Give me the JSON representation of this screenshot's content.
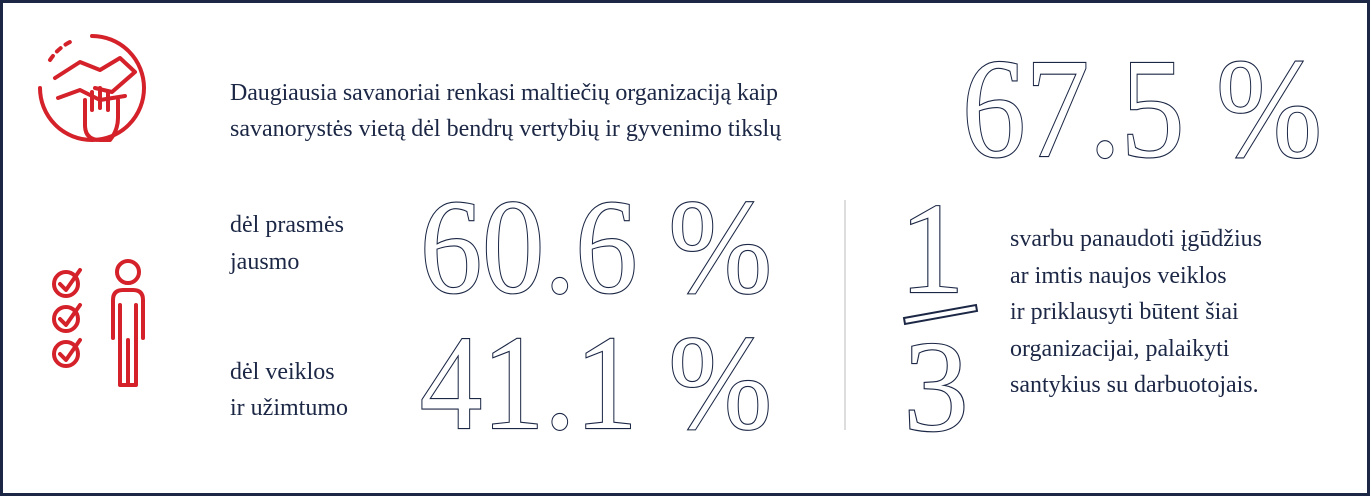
{
  "header": {
    "text_lines": [
      "Daugiausia savanoriai renkasi maltiečių organizaciją kaip",
      "savanorystės vietą dėl bendrų vertybių ir gyvenimo tikslų"
    ],
    "stat": "67.5 %"
  },
  "stats": [
    {
      "label_lines": [
        "dėl prasmės",
        "jausmo"
      ],
      "value": "60.6 %"
    },
    {
      "label_lines": [
        "dėl veiklos",
        "ir užimtumo"
      ],
      "value": "41.1 %"
    }
  ],
  "fraction": {
    "numerator": "1",
    "denominator": "3",
    "text_lines": [
      "svarbu panaudoti įgūdžius",
      "ar imtis naujos veiklos",
      "ir priklausyti būtent šiai",
      "organizacijai, palaikyti",
      "santykius su darbuotojais."
    ]
  }
}
